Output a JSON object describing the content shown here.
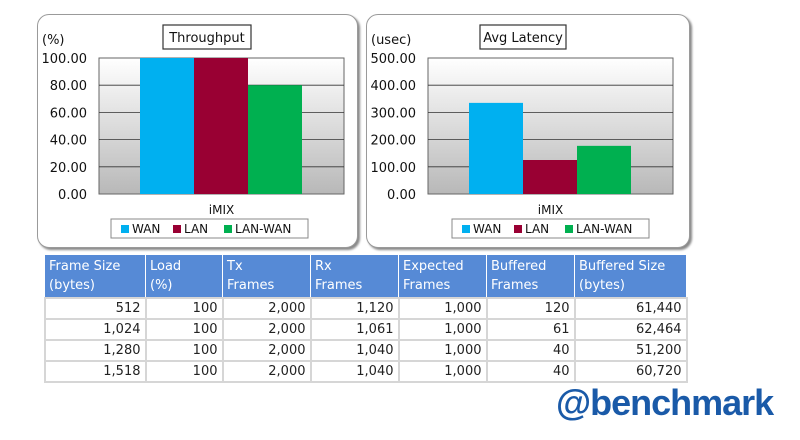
{
  "chart_data": [
    {
      "type": "bar",
      "title": "Throughput",
      "ylabel": "(%)",
      "xlabel": "iMIX",
      "categories": [
        "iMIX"
      ],
      "ylim": [
        0,
        100
      ],
      "yticks": [
        "0.00",
        "20.00",
        "40.00",
        "60.00",
        "80.00",
        "100.00"
      ],
      "legend": "bottom",
      "series": [
        {
          "name": "WAN",
          "values": [
            100
          ],
          "color": "#00b0f0"
        },
        {
          "name": "LAN",
          "values": [
            100
          ],
          "color": "#990033"
        },
        {
          "name": "LAN-WAN",
          "values": [
            80
          ],
          "color": "#00b050"
        }
      ]
    },
    {
      "type": "bar",
      "title": "Avg Latency",
      "ylabel": "(usec)",
      "xlabel": "iMIX",
      "categories": [
        "iMIX"
      ],
      "ylim": [
        0,
        500
      ],
      "yticks": [
        "0.00",
        "100.00",
        "200.00",
        "300.00",
        "400.00",
        "500.00"
      ],
      "legend": "bottom",
      "series": [
        {
          "name": "WAN",
          "values": [
            335
          ],
          "color": "#00b0f0"
        },
        {
          "name": "LAN",
          "values": [
            125
          ],
          "color": "#990033"
        },
        {
          "name": "LAN-WAN",
          "values": [
            177
          ],
          "color": "#00b050"
        }
      ]
    }
  ],
  "table": {
    "headers": [
      [
        "Frame Size",
        "(bytes)"
      ],
      [
        "Load",
        "(%)"
      ],
      [
        "Tx",
        "Frames"
      ],
      [
        "Rx",
        "Frames"
      ],
      [
        "Expected",
        "Frames"
      ],
      [
        "Buffered",
        "Frames"
      ],
      [
        "Buffered Size",
        "(bytes)"
      ]
    ],
    "rows": [
      [
        "512",
        "100",
        "2,000",
        "1,120",
        "1,000",
        "120",
        "61,440"
      ],
      [
        "1,024",
        "100",
        "2,000",
        "1,061",
        "1,000",
        "61",
        "62,464"
      ],
      [
        "1,280",
        "100",
        "2,000",
        "1,040",
        "1,000",
        "40",
        "51,200"
      ],
      [
        "1,518",
        "100",
        "2,000",
        "1,040",
        "1,000",
        "40",
        "60,720"
      ]
    ]
  },
  "logo": "@benchmark"
}
